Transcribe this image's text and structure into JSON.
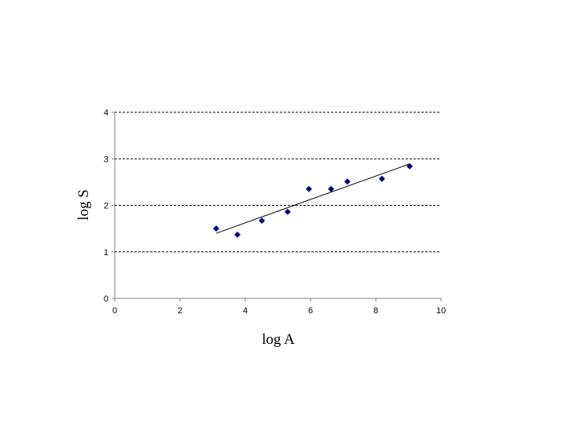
{
  "chart_data": {
    "type": "scatter",
    "x_label": "log A",
    "y_label": "log S",
    "series": [
      {
        "color": "#000080",
        "x": [
          3.11,
          3.76,
          4.51,
          5.3,
          5.95,
          6.63,
          7.13,
          8.19,
          9.04
        ],
        "values": [
          1.5,
          1.37,
          1.67,
          1.86,
          2.35,
          2.35,
          2.51,
          2.57,
          2.84
        ]
      }
    ],
    "trendline": {
      "color": "#000000",
      "x": [
        3.11,
        9.04
      ],
      "y": [
        1.4,
        2.89
      ]
    },
    "xlim": [
      0,
      10
    ],
    "xticks": [
      0,
      2,
      4,
      6,
      8,
      10
    ],
    "ylim": [
      0,
      4
    ],
    "yticks": [
      0,
      1,
      2,
      3,
      4
    ],
    "grid": true
  }
}
